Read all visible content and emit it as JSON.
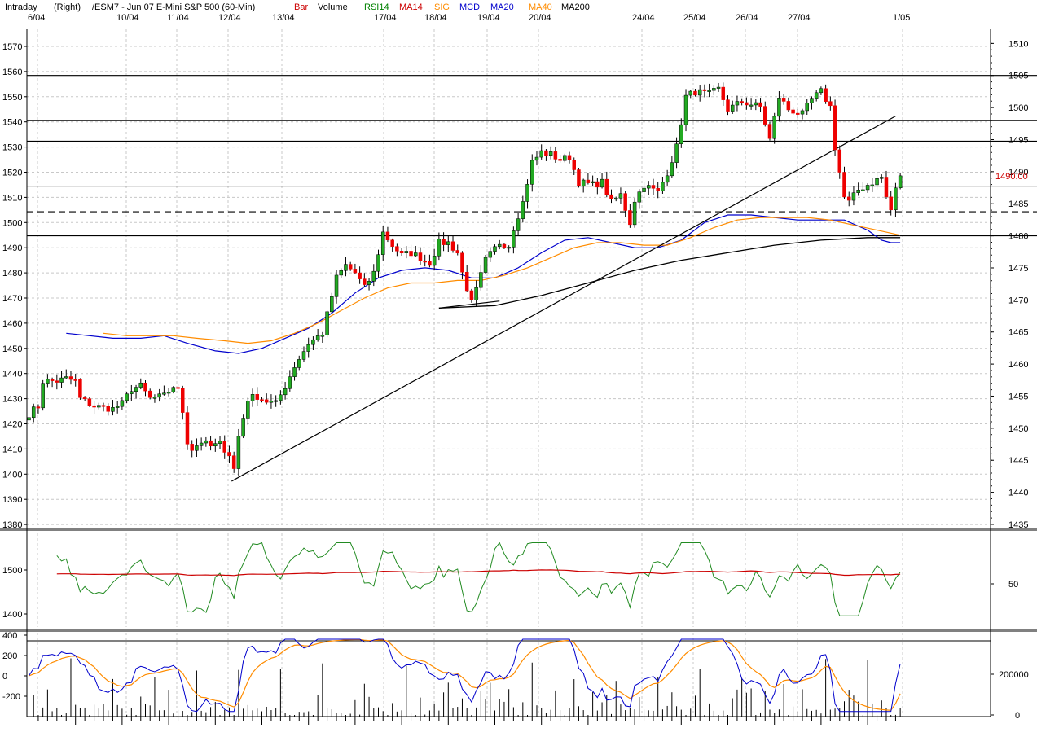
{
  "header": {
    "items": [
      {
        "text": "Intraday",
        "color": "#000000"
      },
      {
        "text": "(Right)",
        "color": "#000000"
      },
      {
        "text": "/ESM7 - Jun 07  E-Mini S&P 500  (60-Min)",
        "color": "#000000"
      },
      {
        "text": "Bar",
        "color": "#cc0000"
      },
      {
        "text": "Volume",
        "color": "#000000"
      },
      {
        "text": "RSI14",
        "color": "#008000"
      },
      {
        "text": "MA14",
        "color": "#cc0000"
      },
      {
        "text": "SIG",
        "color": "#ff8c00"
      },
      {
        "text": "MCD",
        "color": "#0000cc"
      },
      {
        "text": "MA20",
        "color": "#0000cc"
      },
      {
        "text": "MA40",
        "color": "#ff8c00"
      },
      {
        "text": "MA200",
        "color": "#000000"
      }
    ]
  },
  "chart_data": [
    {
      "type": "candlestick",
      "title": "/ESM7 - Jun 07  E-Mini S&P 500  (60-Min)",
      "date_labels": [
        "6/04",
        "10/04",
        "11/04",
        "12/04",
        "13/04",
        "17/04",
        "18/04",
        "19/04",
        "20/04",
        "24/04",
        "25/04",
        "26/04",
        "27/04",
        "1/05"
      ],
      "left_axis": {
        "ticks": [
          1570,
          1560,
          1550,
          1540,
          1530,
          1520,
          1510,
          1500,
          1490,
          1480,
          1470,
          1460,
          1450,
          1440,
          1430,
          1420,
          1410,
          1400,
          1390,
          1380
        ],
        "range": [
          1378,
          1575
        ]
      },
      "right_axis": {
        "ticks": [
          1510,
          1505,
          1500,
          1495,
          1490,
          1485,
          1480,
          1475,
          1470,
          1465,
          1460,
          1455,
          1450,
          1445,
          1440,
          1435
        ],
        "range": [
          1434.2,
          1511.5
        ]
      },
      "last_price": "1490.00",
      "last_price_color": "#cc0000",
      "up_color": "#22aa22",
      "down_color": "#ee0000",
      "horizontal_levels": [
        {
          "value": 1505.0,
          "style": "solid"
        },
        {
          "value": 1498.0,
          "style": "solid"
        },
        {
          "value": 1494.75,
          "style": "solid"
        },
        {
          "value": 1487.75,
          "style": "solid"
        },
        {
          "value": 1483.75,
          "style": "dashed"
        },
        {
          "value": 1480.0,
          "style": "solid"
        }
      ],
      "anchors": [
        {
          "x": 0,
          "y": 1424
        },
        {
          "x": 2,
          "y": 1427
        },
        {
          "x": 3,
          "y": 1437
        },
        {
          "x": 6,
          "y": 1437
        },
        {
          "x": 8,
          "y": 1438
        },
        {
          "x": 10,
          "y": 1437
        },
        {
          "x": 11,
          "y": 1430
        },
        {
          "x": 14,
          "y": 1427
        },
        {
          "x": 18,
          "y": 1426
        },
        {
          "x": 20,
          "y": 1428
        },
        {
          "x": 22,
          "y": 1434
        },
        {
          "x": 24,
          "y": 1435
        },
        {
          "x": 26,
          "y": 1430
        },
        {
          "x": 29,
          "y": 1431
        },
        {
          "x": 31,
          "y": 1435
        },
        {
          "x": 32,
          "y": 1433
        },
        {
          "x": 33,
          "y": 1425
        },
        {
          "x": 34,
          "y": 1413
        },
        {
          "x": 35,
          "y": 1410
        },
        {
          "x": 37,
          "y": 1413
        },
        {
          "x": 39,
          "y": 1411
        },
        {
          "x": 41,
          "y": 1412
        },
        {
          "x": 43,
          "y": 1408
        },
        {
          "x": 44,
          "y": 1402
        },
        {
          "x": 45,
          "y": 1415
        },
        {
          "x": 47,
          "y": 1430
        },
        {
          "x": 49,
          "y": 1431
        },
        {
          "x": 51,
          "y": 1429
        },
        {
          "x": 53,
          "y": 1428
        },
        {
          "x": 55,
          "y": 1435
        },
        {
          "x": 57,
          "y": 1443
        },
        {
          "x": 60,
          "y": 1452
        },
        {
          "x": 63,
          "y": 1456
        },
        {
          "x": 66,
          "y": 1478
        },
        {
          "x": 68,
          "y": 1483
        },
        {
          "x": 70,
          "y": 1480
        },
        {
          "x": 72,
          "y": 1474
        },
        {
          "x": 74,
          "y": 1480
        },
        {
          "x": 76,
          "y": 1496
        },
        {
          "x": 78,
          "y": 1491
        },
        {
          "x": 80,
          "y": 1487
        },
        {
          "x": 82,
          "y": 1488
        },
        {
          "x": 84,
          "y": 1486
        },
        {
          "x": 86,
          "y": 1484
        },
        {
          "x": 88,
          "y": 1492
        },
        {
          "x": 90,
          "y": 1492
        },
        {
          "x": 92,
          "y": 1488
        },
        {
          "x": 93,
          "y": 1480
        },
        {
          "x": 95,
          "y": 1468
        },
        {
          "x": 96,
          "y": 1473
        },
        {
          "x": 98,
          "y": 1485
        },
        {
          "x": 101,
          "y": 1492
        },
        {
          "x": 103,
          "y": 1491
        },
        {
          "x": 104,
          "y": 1498
        },
        {
          "x": 106,
          "y": 1508
        },
        {
          "x": 108,
          "y": 1524
        },
        {
          "x": 110,
          "y": 1528
        },
        {
          "x": 112,
          "y": 1527
        },
        {
          "x": 114,
          "y": 1525
        },
        {
          "x": 116,
          "y": 1526
        },
        {
          "x": 118,
          "y": 1516
        },
        {
          "x": 121,
          "y": 1515
        },
        {
          "x": 123,
          "y": 1516
        },
        {
          "x": 125,
          "y": 1508
        },
        {
          "x": 127,
          "y": 1511
        },
        {
          "x": 129,
          "y": 1500
        },
        {
          "x": 130,
          "y": 1509
        },
        {
          "x": 132,
          "y": 1515
        },
        {
          "x": 135,
          "y": 1512
        },
        {
          "x": 137,
          "y": 1520
        },
        {
          "x": 139,
          "y": 1530
        },
        {
          "x": 141,
          "y": 1550
        },
        {
          "x": 143,
          "y": 1552
        },
        {
          "x": 146,
          "y": 1551
        },
        {
          "x": 148,
          "y": 1553
        },
        {
          "x": 150,
          "y": 1545
        },
        {
          "x": 153,
          "y": 1548
        },
        {
          "x": 155,
          "y": 1547
        },
        {
          "x": 157,
          "y": 1546
        },
        {
          "x": 159,
          "y": 1533
        },
        {
          "x": 161,
          "y": 1550
        },
        {
          "x": 163,
          "y": 1545
        },
        {
          "x": 166,
          "y": 1543
        },
        {
          "x": 168,
          "y": 1549
        },
        {
          "x": 170,
          "y": 1552
        },
        {
          "x": 172,
          "y": 1546
        },
        {
          "x": 173,
          "y": 1530
        },
        {
          "x": 174,
          "y": 1520
        },
        {
          "x": 175,
          "y": 1510
        },
        {
          "x": 176,
          "y": 1508
        },
        {
          "x": 178,
          "y": 1513
        },
        {
          "x": 181,
          "y": 1516
        },
        {
          "x": 183,
          "y": 1518
        },
        {
          "x": 184,
          "y": 1510
        },
        {
          "x": 185,
          "y": 1505
        },
        {
          "x": 186,
          "y": 1513
        },
        {
          "x": 187,
          "y": 1519
        }
      ],
      "ma20": [
        [
          8,
          1456
        ],
        [
          13,
          1455
        ],
        [
          18,
          1454
        ],
        [
          24,
          1454
        ],
        [
          29,
          1455
        ],
        [
          34,
          1452
        ],
        [
          40,
          1449
        ],
        [
          45,
          1448
        ],
        [
          50,
          1450
        ],
        [
          55,
          1454
        ],
        [
          60,
          1458
        ],
        [
          65,
          1464
        ],
        [
          70,
          1472
        ],
        [
          75,
          1478
        ],
        [
          80,
          1481
        ],
        [
          85,
          1482
        ],
        [
          90,
          1481
        ],
        [
          95,
          1478
        ],
        [
          100,
          1478
        ],
        [
          105,
          1482
        ],
        [
          110,
          1488
        ],
        [
          115,
          1493
        ],
        [
          120,
          1494
        ],
        [
          125,
          1492
        ],
        [
          130,
          1490
        ],
        [
          135,
          1490
        ],
        [
          140,
          1493
        ],
        [
          145,
          1500
        ],
        [
          150,
          1503
        ],
        [
          155,
          1503
        ],
        [
          160,
          1502
        ],
        [
          165,
          1501
        ],
        [
          170,
          1501
        ],
        [
          175,
          1501
        ],
        [
          180,
          1497
        ],
        [
          183,
          1493
        ],
        [
          185,
          1492
        ],
        [
          187,
          1492
        ]
      ],
      "ma40": [
        [
          16,
          1456
        ],
        [
          21,
          1455
        ],
        [
          26,
          1455
        ],
        [
          31,
          1455
        ],
        [
          36,
          1454
        ],
        [
          42,
          1453
        ],
        [
          47,
          1452
        ],
        [
          52,
          1453
        ],
        [
          57,
          1456
        ],
        [
          62,
          1460
        ],
        [
          67,
          1465
        ],
        [
          72,
          1470
        ],
        [
          77,
          1474
        ],
        [
          82,
          1476
        ],
        [
          87,
          1476
        ],
        [
          92,
          1477
        ],
        [
          97,
          1477
        ],
        [
          102,
          1479
        ],
        [
          107,
          1482
        ],
        [
          112,
          1486
        ],
        [
          117,
          1490
        ],
        [
          122,
          1492
        ],
        [
          127,
          1492
        ],
        [
          132,
          1491
        ],
        [
          137,
          1491
        ],
        [
          142,
          1494
        ],
        [
          147,
          1498
        ],
        [
          152,
          1501
        ],
        [
          157,
          1502
        ],
        [
          162,
          1502
        ],
        [
          167,
          1502
        ],
        [
          172,
          1501
        ],
        [
          177,
          1499
        ],
        [
          182,
          1497
        ],
        [
          187,
          1495
        ]
      ],
      "ma200": [
        [
          88,
          1466
        ],
        [
          100,
          1467
        ],
        [
          110,
          1471
        ],
        [
          120,
          1476
        ],
        [
          130,
          1481
        ],
        [
          140,
          1485
        ],
        [
          150,
          1488
        ],
        [
          160,
          1491
        ],
        [
          170,
          1493
        ],
        [
          180,
          1494
        ],
        [
          187,
          1494
        ]
      ],
      "trendlines": [
        [
          [
            43.5,
            1397.2
          ],
          [
            186,
            1542.3
          ]
        ],
        [
          [
            88,
            1466
          ],
          [
            101,
            1468.8
          ]
        ]
      ]
    },
    {
      "type": "line",
      "series_names": [
        "RSI14",
        "MA14"
      ],
      "left_axis": {
        "ticks": [
          1500,
          1400
        ]
      },
      "right_axis": {
        "ticks": [
          50
        ]
      }
    },
    {
      "type": "line+volume",
      "series_names": [
        "MCD",
        "SIG",
        "Volume"
      ],
      "left_axis": {
        "ticks": [
          400,
          200,
          0,
          -200
        ]
      },
      "right_axis": {
        "ticks": [
          200000,
          0
        ]
      }
    }
  ]
}
